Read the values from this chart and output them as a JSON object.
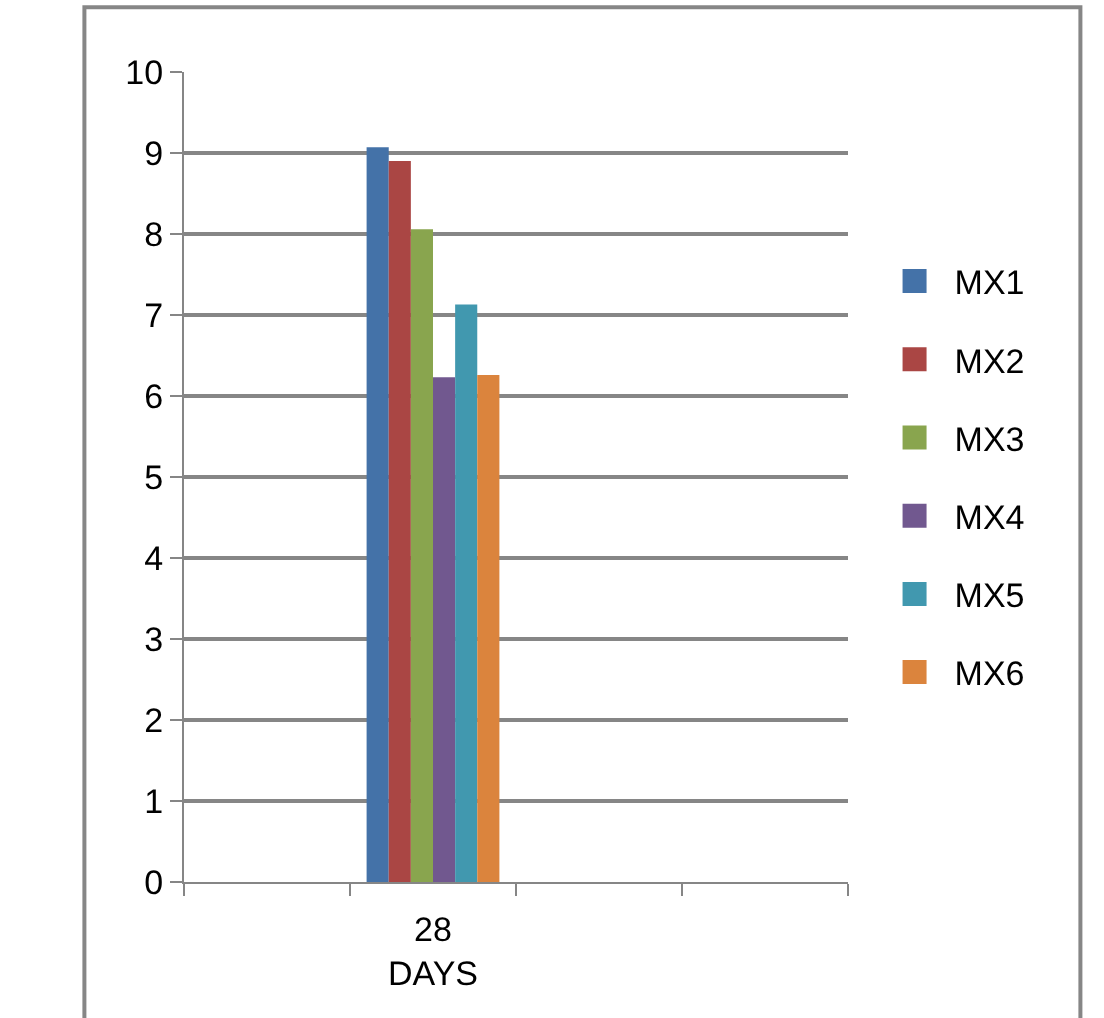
{
  "chart_data": {
    "type": "bar",
    "categories": [
      null,
      "28 DAYS",
      null,
      null
    ],
    "series": [
      {
        "name": "MX1",
        "color": "#4472a8",
        "values": [
          null,
          9.07,
          null,
          null
        ]
      },
      {
        "name": "MX2",
        "color": "#aa4644",
        "values": [
          null,
          8.9,
          null,
          null
        ]
      },
      {
        "name": "MX3",
        "color": "#89a54e",
        "values": [
          null,
          8.06,
          null,
          null
        ]
      },
      {
        "name": "MX4",
        "color": "#71588f",
        "values": [
          null,
          6.23,
          null,
          null
        ]
      },
      {
        "name": "MX5",
        "color": "#4198af",
        "values": [
          null,
          7.13,
          null,
          null
        ]
      },
      {
        "name": "MX6",
        "color": "#db843d",
        "values": [
          null,
          6.26,
          null,
          null
        ]
      }
    ],
    "ylim": [
      0,
      10
    ],
    "yticks": [
      0,
      1,
      2,
      3,
      4,
      5,
      6,
      7,
      8,
      9,
      10
    ],
    "grid": "y",
    "legend": "right"
  }
}
